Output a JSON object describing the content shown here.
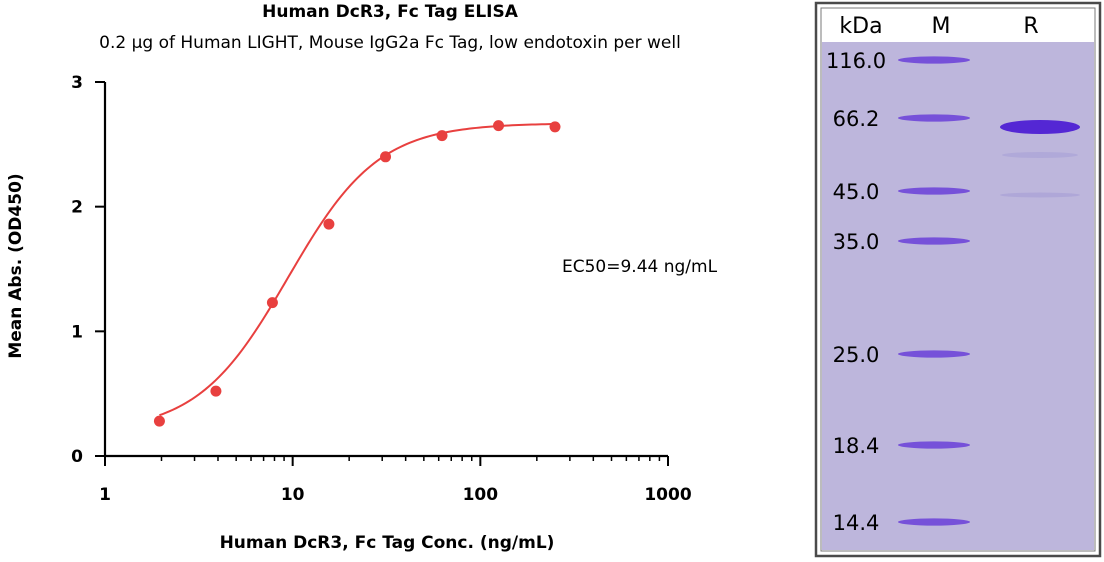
{
  "chart_data": [
    {
      "type": "scatter",
      "title": "Human DcR3, Fc Tag ELISA",
      "subtitle": "0.2 µg of Human LIGHT, Mouse IgG2a Fc Tag, low endotoxin per well",
      "xlabel": "Human DcR3, Fc Tag Conc. (ng/mL)",
      "ylabel": "Mean Abs. (OD450)",
      "x_scale": "log",
      "xlim": [
        1,
        1000
      ],
      "ylim": [
        0,
        3
      ],
      "x_ticks": [
        "1",
        "10",
        "100",
        "1000"
      ],
      "y_ticks": [
        "0",
        "1",
        "2",
        "3"
      ],
      "annotation": "EC50=9.44 ng/mL",
      "fit": {
        "bottom": 0.19,
        "top": 2.67,
        "ec50": 9.44,
        "hill": 1.8
      },
      "points": [
        {
          "x": 1.95,
          "y": 0.28
        },
        {
          "x": 3.9,
          "y": 0.52
        },
        {
          "x": 7.8,
          "y": 1.23
        },
        {
          "x": 15.6,
          "y": 1.86
        },
        {
          "x": 31.25,
          "y": 2.4
        },
        {
          "x": 62.5,
          "y": 2.57
        },
        {
          "x": 125,
          "y": 2.65
        },
        {
          "x": 250,
          "y": 2.64
        }
      ],
      "colors": {
        "series": "#e8403f",
        "axis": "#000000"
      }
    },
    {
      "type": "gel",
      "unit_label": "kDa",
      "lanes": [
        "M",
        "R"
      ],
      "marker_labels": [
        "116.0",
        "66.2",
        "45.0",
        "35.0",
        "25.0",
        "18.4",
        "14.4"
      ],
      "colors": {
        "background": "#bdb6dc",
        "band": "#6a3fd8",
        "band_dark": "#5427d4",
        "frame": "#4a4a4a"
      }
    }
  ]
}
